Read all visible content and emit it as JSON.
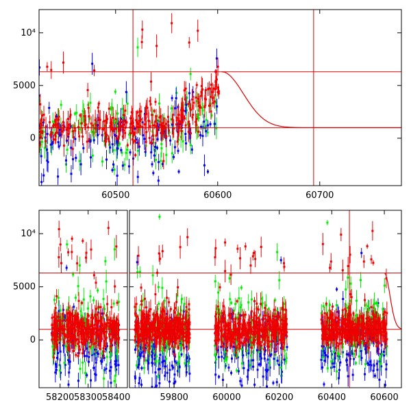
{
  "chart_data": [
    {
      "type": "scatter",
      "panel": "top",
      "xlim": [
        60425,
        60780
      ],
      "ylim": [
        -4500,
        12200
      ],
      "x_ticks": [
        60500,
        60600,
        60700
      ],
      "x_tick_labels": [
        "60500",
        "60600",
        "60700"
      ],
      "y_ticks": [
        0,
        5000,
        10000
      ],
      "y_tick_labels": [
        "0",
        "5000",
        "10⁴"
      ],
      "colors": {
        "green": "#00ee00",
        "blue": "#0000ee",
        "red": "#ee0000",
        "model": "#dd0000"
      },
      "series": [
        {
          "color": "green",
          "x_range": [
            60425,
            60600
          ],
          "mean": 700,
          "spread": 1700
        },
        {
          "color": "blue",
          "x_range": [
            60425,
            60600
          ],
          "mean": -600,
          "spread": 1700
        },
        {
          "color": "red",
          "x_range": [
            60425,
            60604
          ],
          "mean": 1000,
          "spread": 900
        }
      ],
      "model": {
        "baseline": 1000,
        "peak": 6300,
        "peak_x": 60604,
        "decay_to_x": 60690
      },
      "hlines": [
        6300,
        1000
      ],
      "vlines": [
        60517,
        60694
      ]
    },
    {
      "type": "scatter",
      "panel": "bottom",
      "ylim": [
        -4500,
        12200
      ],
      "y_ticks": [
        0,
        5000,
        10000
      ],
      "y_tick_labels": [
        "0",
        "5000",
        "10⁴"
      ],
      "segments": [
        {
          "xlim": [
            58125,
            58440
          ],
          "x_ticks": [
            58200,
            58300,
            58400
          ],
          "x_tick_labels": [
            "58200",
            "58300",
            "58400"
          ],
          "data_range": [
            58170,
            58410
          ]
        },
        {
          "xlim": [
            59630,
            60665
          ],
          "x_ticks": [
            59800,
            60000,
            60200,
            60400,
            60600
          ],
          "x_tick_labels": [
            "59800",
            "60000",
            "60200",
            "60400",
            "60600"
          ],
          "data_ranges": [
            [
              59650,
              59860
            ],
            [
              59955,
              60230
            ],
            [
              60360,
              60610
            ]
          ]
        }
      ],
      "hlines": [
        6300,
        1000
      ],
      "vlines": [
        60467
      ]
    }
  ]
}
